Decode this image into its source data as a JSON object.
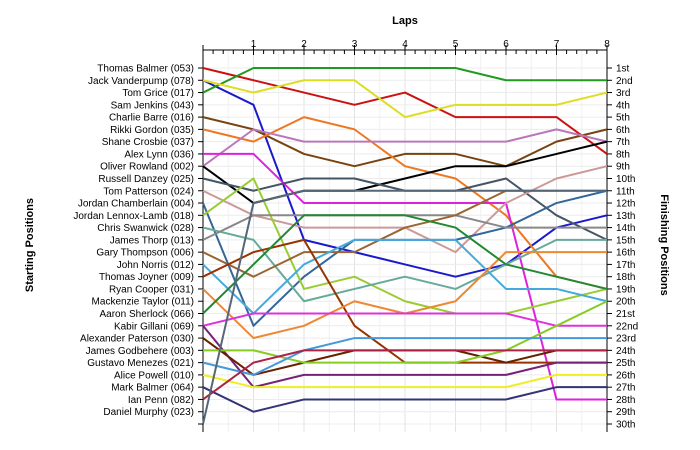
{
  "chart_data": {
    "type": "line",
    "title": "",
    "xlabel": "Laps",
    "ylabel_left": "Starting Positions",
    "ylabel_right": "Finishing Positions",
    "x": [
      0,
      1,
      2,
      3,
      4,
      5,
      6,
      7,
      8
    ],
    "x_tick_labels": [
      "1",
      "2",
      "3",
      "4",
      "5",
      "6",
      "7",
      "8"
    ],
    "finishing_labels": [
      "1st",
      "2nd",
      "3rd",
      "4th",
      "5th",
      "6th",
      "7th",
      "8th",
      "9th",
      "10th",
      "11th",
      "12th",
      "13th",
      "14th",
      "15th",
      "16th",
      "17th",
      "18th",
      "19th",
      "20th",
      "21st",
      "22nd",
      "23rd",
      "24th",
      "25th",
      "26th",
      "27th",
      "28th",
      "29th",
      "30th"
    ],
    "y_range": [
      1,
      30
    ],
    "y_inverted": true,
    "grid": true,
    "series": [
      {
        "name": "Thomas Balmer (053)",
        "color": "#cc1111",
        "positions": [
          1,
          2,
          3,
          4,
          3,
          5,
          5,
          5,
          8
        ]
      },
      {
        "name": "Jack Vanderpump (078)",
        "color": "#1a1acc",
        "positions": [
          2,
          4,
          15,
          16,
          17,
          18,
          17,
          14,
          13
        ]
      },
      {
        "name": "Tom Grice (017)",
        "color": "#229922",
        "positions": [
          3,
          1,
          1,
          1,
          1,
          1,
          2,
          2,
          2
        ]
      },
      {
        "name": "Sam Jenkins (043)",
        "color": "#dddd22",
        "positions": [
          2,
          3,
          2,
          2,
          5,
          4,
          4,
          4,
          3
        ]
      },
      {
        "name": "Charlie Barre (016)",
        "color": "#774411",
        "positions": [
          5,
          6,
          8,
          9,
          8,
          8,
          9,
          7,
          6
        ]
      },
      {
        "name": "Rikki Gordon (035)",
        "color": "#ee7722",
        "positions": [
          6,
          7,
          5,
          6,
          9,
          10,
          13,
          18,
          19
        ]
      },
      {
        "name": "Shane Crosbie (037)",
        "color": "#bb77bb",
        "positions": [
          9,
          6,
          7,
          7,
          7,
          7,
          7,
          6,
          7
        ]
      },
      {
        "name": "Alex Lynn (036)",
        "color": "#dd22dd",
        "positions": [
          8,
          8,
          12,
          12,
          12,
          12,
          12,
          28,
          28
        ]
      },
      {
        "name": "Oliver Rowland (002)",
        "color": "#000000",
        "positions": [
          9,
          12,
          11,
          11,
          10,
          9,
          9,
          8,
          7
        ]
      },
      {
        "name": "Russell Danzey (025)",
        "color": "#445566",
        "positions": [
          10,
          11,
          10,
          10,
          11,
          11,
          10,
          13,
          15
        ]
      },
      {
        "name": "Tom Patterson (024)",
        "color": "#cc9999",
        "positions": [
          11,
          13,
          14,
          14,
          14,
          16,
          12,
          10,
          9
        ]
      },
      {
        "name": "Jordan Chamberlain (004)",
        "color": "#336699",
        "positions": [
          12,
          22,
          18,
          15,
          15,
          15,
          14,
          12,
          11
        ]
      },
      {
        "name": "Jordan Lennox-Lamb (018)",
        "color": "#99cc33",
        "positions": [
          13,
          10,
          19,
          18,
          20,
          21,
          21,
          20,
          19
        ]
      },
      {
        "name": "Chris Swanwick (028)",
        "color": "#66aa99",
        "positions": [
          14,
          15,
          20,
          19,
          18,
          19,
          17,
          15,
          15
        ]
      },
      {
        "name": "James Thorp (013)",
        "color": "#888888",
        "positions": [
          15,
          13,
          13,
          13,
          13,
          13,
          14,
          14,
          14
        ]
      },
      {
        "name": "Gary Thompson (006)",
        "color": "#996633",
        "positions": [
          16,
          18,
          16,
          16,
          14,
          13,
          11,
          11,
          11
        ]
      },
      {
        "name": "John Norris (012)",
        "color": "#44aadd",
        "positions": [
          17,
          21,
          17,
          15,
          15,
          15,
          19,
          19,
          20
        ]
      },
      {
        "name": "Thomas Joyner (009)",
        "color": "#993300",
        "positions": [
          18,
          16,
          15,
          22,
          25,
          25,
          25,
          25,
          25
        ]
      },
      {
        "name": "Ryan Cooper (031)",
        "color": "#ee8833",
        "positions": [
          19,
          23,
          22,
          20,
          21,
          20,
          16,
          16,
          16
        ]
      },
      {
        "name": "Mackenzie Taylor (011)",
        "color": "#228833",
        "positions": [
          21,
          17,
          13,
          13,
          13,
          14,
          17,
          18,
          19
        ]
      },
      {
        "name": "Aaron Sherlock (066)",
        "color": "#dd33dd",
        "positions": [
          22,
          21,
          21,
          21,
          21,
          21,
          21,
          22,
          22
        ]
      },
      {
        "name": "Kabir Gillani (069)",
        "color": "#772277",
        "positions": [
          22,
          27,
          26,
          26,
          26,
          26,
          26,
          25,
          25
        ]
      },
      {
        "name": "Alexander Paterson (030)",
        "color": "#662200",
        "positions": [
          23,
          26,
          25,
          24,
          24,
          24,
          25,
          24,
          24
        ]
      },
      {
        "name": "James Godbehere (003)",
        "color": "#88cc22",
        "positions": [
          24,
          24,
          25,
          25,
          25,
          25,
          24,
          22,
          20
        ]
      },
      {
        "name": "Gustavo Menezes (021)",
        "color": "#4499dd",
        "positions": [
          25,
          26,
          24,
          23,
          23,
          23,
          23,
          23,
          23
        ]
      },
      {
        "name": "Alice Powell (010)",
        "color": "#eeee22",
        "positions": [
          26,
          27,
          27,
          27,
          27,
          27,
          27,
          26,
          26
        ]
      },
      {
        "name": "Mark Balmer (064)",
        "color": "#333377",
        "positions": [
          27,
          29,
          28,
          28,
          28,
          28,
          28,
          27,
          27
        ]
      },
      {
        "name": "Ian Penn (082)",
        "color": "#aa2244",
        "positions": [
          28,
          25,
          24,
          24,
          24,
          24,
          24,
          24,
          24
        ]
      },
      {
        "name": "Daniel Murphy (023)",
        "color": "#556677",
        "positions": [
          30,
          12,
          11,
          11,
          11,
          11,
          11,
          11,
          11
        ]
      }
    ]
  }
}
